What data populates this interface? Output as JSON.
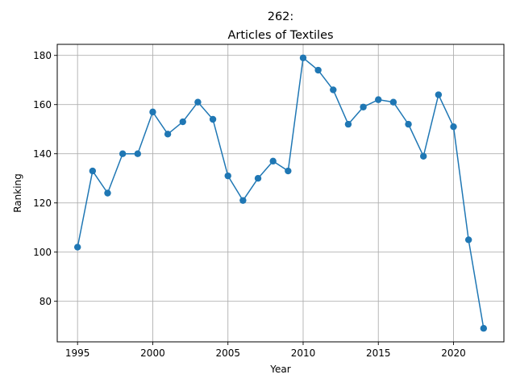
{
  "chart_data": {
    "type": "line",
    "title_line1": "262:",
    "title_line2": "Articles of Textiles",
    "xlabel": "Year",
    "ylabel": "Ranking",
    "xlim": [
      1993.65,
      2023.35
    ],
    "ylim": [
      63.5,
      184.5
    ],
    "x_ticks": [
      1995,
      2000,
      2005,
      2010,
      2015,
      2020
    ],
    "y_ticks": [
      80,
      100,
      120,
      140,
      160,
      180
    ],
    "grid": true,
    "line_color": "#1f77b4",
    "series": [
      {
        "x": [
          1995,
          1996,
          1997,
          1998,
          1999,
          2000,
          2001,
          2002,
          2003,
          2004,
          2005,
          2006,
          2007,
          2008,
          2009,
          2010,
          2011,
          2012,
          2013,
          2014,
          2015,
          2016,
          2017,
          2018,
          2019,
          2020,
          2021,
          2022
        ],
        "values": [
          102,
          133,
          124,
          140,
          140,
          157,
          148,
          153,
          161,
          154,
          131,
          121,
          130,
          137,
          133,
          179,
          174,
          166,
          152,
          159,
          162,
          161,
          152,
          139,
          164,
          151,
          105,
          69
        ]
      }
    ]
  }
}
